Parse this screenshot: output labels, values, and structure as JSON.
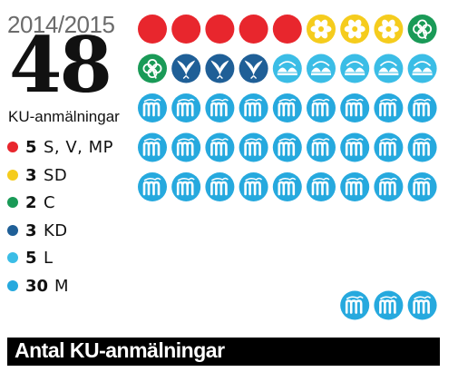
{
  "header": {
    "period": "2014/2015",
    "total": "48",
    "total_label": "KU-anmälningar"
  },
  "footer": {
    "title": "Antal KU-anmälningar"
  },
  "chart_data": {
    "type": "pictogram",
    "title": "Antal KU-anmälningar",
    "total": 48,
    "units_per_row": 9,
    "categories": [
      "S, V, MP",
      "SD",
      "C",
      "KD",
      "L",
      "M"
    ],
    "values": [
      5,
      3,
      2,
      3,
      5,
      30
    ],
    "colors": [
      "#e8262d",
      "#f5cc1d",
      "#1a9a57",
      "#1f5f97",
      "#3bbde6",
      "#26a9de"
    ],
    "icons": [
      "red-dot-icon",
      "sd-flower-icon",
      "c-clover-icon",
      "kd-dove-icon",
      "l-logo-icon",
      "m-logo-icon"
    ],
    "series": [
      {
        "name": "S, V, MP",
        "value": 5,
        "count_label": "5",
        "color": "#e8262d",
        "icon": "red-dot-icon"
      },
      {
        "name": "SD",
        "value": 3,
        "count_label": "3",
        "color": "#f5cc1d",
        "icon": "sd-flower-icon"
      },
      {
        "name": "C",
        "value": 2,
        "count_label": "2",
        "color": "#1a9a57",
        "icon": "c-clover-icon"
      },
      {
        "name": "KD",
        "value": 3,
        "count_label": "3",
        "color": "#1f5f97",
        "icon": "kd-dove-icon"
      },
      {
        "name": "L",
        "value": 5,
        "count_label": "5",
        "color": "#3bbde6",
        "icon": "l-logo-icon"
      },
      {
        "name": "M",
        "value": 30,
        "count_label": "30",
        "color": "#26a9de",
        "icon": "m-logo-icon"
      }
    ],
    "legend_placement": "left"
  }
}
